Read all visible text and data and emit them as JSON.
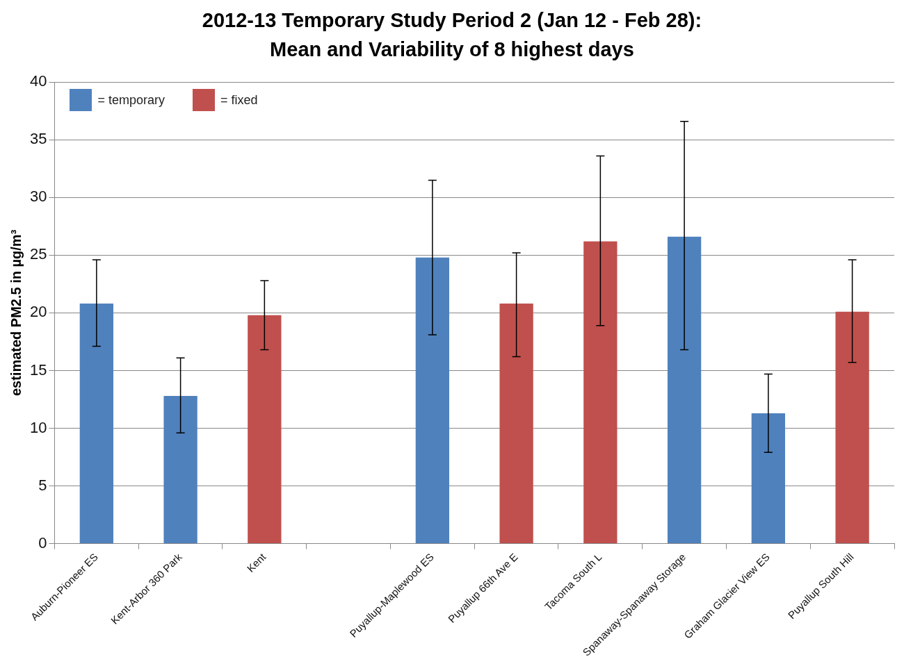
{
  "chart_data": {
    "type": "bar",
    "title": "2012-13 Temporary Study Period 2 (Jan 12 - Feb 28): Mean and Variability of 8 highest days",
    "ylabel": "estimated PM2.5 in µg/m³",
    "categories": [
      "Auburn-Pioneer ES",
      "Kent-Arbor 360 Park",
      "Kent",
      null,
      "Puyallup-Maplewood ES",
      "Puyallup 66th Ave E",
      "Tacoma South L",
      "Spanaway-Spanaway Storage",
      "Graham Glacier View ES",
      "Puyallup South Hill"
    ],
    "series": [
      {
        "name": "= temporary",
        "color": "#4f81bd",
        "values": [
          20.8,
          12.8,
          null,
          null,
          24.8,
          null,
          null,
          26.6,
          11.3,
          null
        ],
        "errors": [
          [
            17.1,
            24.6
          ],
          [
            9.6,
            16.1
          ],
          null,
          null,
          [
            18.1,
            31.5
          ],
          null,
          null,
          [
            16.8,
            36.6
          ],
          [
            7.9,
            14.7
          ],
          null
        ]
      },
      {
        "name": "= fixed",
        "color": "#c0504d",
        "values": [
          null,
          null,
          19.8,
          null,
          null,
          20.8,
          26.2,
          null,
          null,
          20.1
        ],
        "errors": [
          null,
          null,
          [
            16.8,
            22.8
          ],
          null,
          null,
          [
            16.2,
            25.2
          ],
          [
            18.9,
            33.6
          ],
          null,
          null,
          [
            15.7,
            24.6
          ]
        ]
      }
    ],
    "ylim": [
      0,
      40
    ],
    "yticks": [
      0,
      5,
      10,
      15,
      20,
      25,
      30,
      35,
      40
    ],
    "grid": "y",
    "legend": "top left"
  }
}
